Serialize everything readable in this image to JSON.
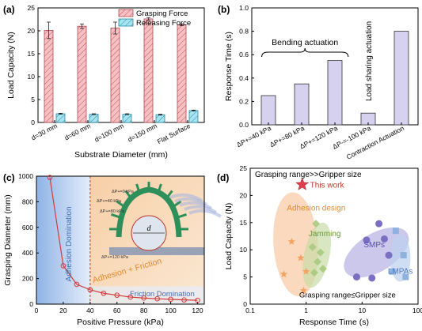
{
  "panels": {
    "a": {
      "label": "(a)"
    },
    "b": {
      "label": "(b)"
    },
    "c": {
      "label": "(c)"
    },
    "d": {
      "label": "(d)"
    }
  },
  "chart_data": [
    {
      "id": "a",
      "type": "bar",
      "xlabel": "Substrate Diameter (mm)",
      "ylabel": "Load Capacity (N)",
      "ylim": [
        0,
        25
      ],
      "yticks": [
        0,
        5,
        10,
        15,
        20,
        25
      ],
      "categories": [
        "d=30 mm",
        "d=60 mm",
        "d=100 mm",
        "d=150 mm",
        "Flat Surface"
      ],
      "series": [
        {
          "name": "Grasping Force",
          "values": [
            20.1,
            21.0,
            20.6,
            22.6,
            21.3
          ],
          "errors": [
            1.8,
            0.5,
            1.3,
            0.3,
            0.2
          ],
          "color": "#f2a6ab"
        },
        {
          "name": "Releasing Force",
          "values": [
            1.9,
            1.8,
            1.8,
            1.7,
            2.6
          ],
          "errors": [
            0.1,
            0.1,
            0.1,
            0.1,
            0.1
          ],
          "color": "#7fd6e8"
        }
      ],
      "legend": "top-right"
    },
    {
      "id": "b",
      "type": "bar",
      "xlabel": "",
      "ylabel": "Response Time (s)",
      "ylim": [
        0,
        1.0
      ],
      "yticks": [
        0.0,
        0.2,
        0.4,
        0.6,
        0.8,
        1.0
      ],
      "categories": [
        "ΔP+=40 kPa",
        "ΔP+=80 kPa",
        "ΔP+=120 kPa",
        "ΔP-=-100 kPa",
        "Contraction Actuation"
      ],
      "values": [
        0.25,
        0.35,
        0.55,
        0.1,
        0.8
      ],
      "color": "#d6d1ef",
      "annotations": [
        "Bending actuation",
        "Load sharing actuation"
      ]
    },
    {
      "id": "c",
      "type": "line",
      "xlabel": "Positive Pressure (kPa)",
      "ylabel": "Grasping Diameter (mm)",
      "xlim": [
        0,
        125
      ],
      "ylim": [
        0,
        1000
      ],
      "xticks": [
        0,
        20,
        40,
        60,
        80,
        100,
        120
      ],
      "yticks": [
        0,
        200,
        400,
        600,
        800,
        1000
      ],
      "x": [
        10,
        20,
        30,
        40,
        50,
        60,
        70,
        80,
        90,
        100,
        110,
        120
      ],
      "y": [
        990,
        300,
        155,
        112,
        85,
        70,
        55,
        48,
        42,
        38,
        33,
        30
      ],
      "regions": [
        "Adhesion Domination",
        "Adhesion + Friction",
        "Friction Domination"
      ],
      "inset_labels": {
        "p0": "ΔP+=0 kPa",
        "p40": "ΔP+=40 kPa",
        "p80": "ΔP+=80 kPa",
        "p120": "ΔP+=120 kPa",
        "d": "d"
      }
    },
    {
      "id": "d",
      "type": "scatter",
      "xlabel": "Response Time (s)",
      "ylabel": "Load Capacity (N)",
      "xscale": "log",
      "xlim": [
        0.1,
        100
      ],
      "ylim": [
        0,
        25
      ],
      "xticks": [
        0.1,
        1,
        10,
        100
      ],
      "xtick_labels": [
        "0.1",
        "1",
        "10",
        "100"
      ],
      "yticks": [
        0,
        5,
        10,
        15,
        20,
        25
      ],
      "annotations": [
        "Grasping range>>Gripper size",
        "Grasping range≤Gripper size",
        "This work"
      ],
      "groups": [
        {
          "name": "Adhesion design",
          "marker": "star",
          "color": "#f4a261",
          "x": [
            0.55,
            0.4,
            0.8,
            1.0,
            0.9
          ],
          "y": [
            11.5,
            5.5,
            8.5,
            6.0,
            2.5
          ]
        },
        {
          "name": "Jamming",
          "marker": "diamond",
          "color": "#a8c97f",
          "x": [
            1.5,
            1.3,
            1.8,
            1.6,
            1.4,
            2.0
          ],
          "y": [
            14.8,
            10.5,
            9.5,
            7.8,
            5.8,
            6.5
          ]
        },
        {
          "name": "SMPs",
          "marker": "circle",
          "color": "#7b6fc4",
          "x": [
            8,
            15,
            20,
            12,
            30,
            25
          ],
          "y": [
            5.0,
            4.8,
            14.8,
            11.8,
            9.0,
            12.0
          ]
        },
        {
          "name": "LMPAs",
          "marker": "square",
          "color": "#8fb1de",
          "x": [
            40,
            55,
            35,
            60
          ],
          "y": [
            13.5,
            9.0,
            6.0,
            5.0
          ]
        },
        {
          "name": "This work",
          "marker": "star",
          "color": "#e0404a",
          "x": [
            0.85
          ],
          "y": [
            22
          ]
        }
      ]
    }
  ]
}
